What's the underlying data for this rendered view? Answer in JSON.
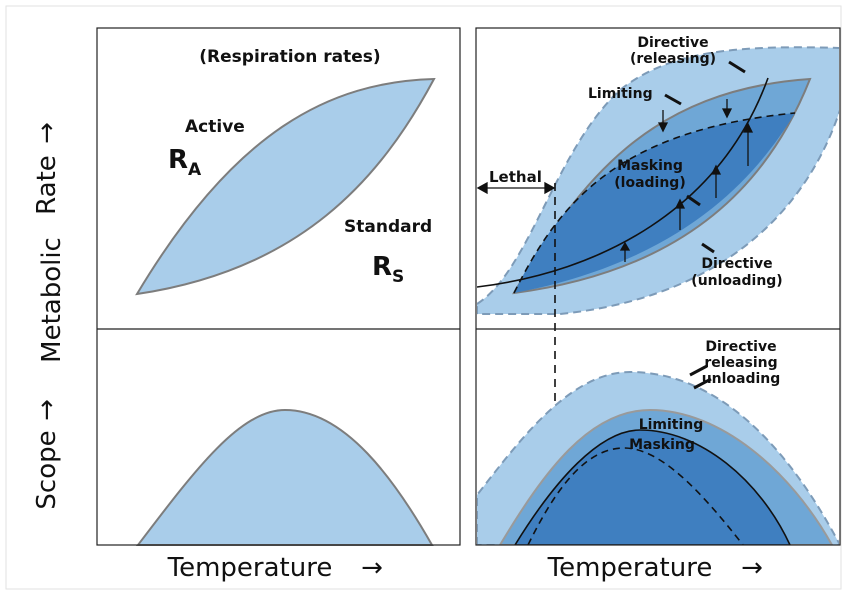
{
  "figure": {
    "ylabel_main": "Metabolic",
    "ylabel_rate": "Rate",
    "ylabel_scope": "Scope",
    "xlabel_left": "Temperature",
    "xlabel_right": "Temperature",
    "arrow_glyph": "→"
  },
  "top_left": {
    "title": "(Respiration rates)",
    "active_word": "Active",
    "ra_main": "R",
    "ra_sub": "A",
    "standard_word": "Standard",
    "rs_main": "R",
    "rs_sub": "S"
  },
  "top_right": {
    "directive_releasing_1": "Directive",
    "directive_releasing_2": "(releasing)",
    "limiting": "Limiting",
    "lethal": "Lethal",
    "masking_1": "Masking",
    "masking_2": "(loading)",
    "directive_unloading_1": "Directive",
    "directive_unloading_2": "(unloading)"
  },
  "bottom_right": {
    "directive_1": "Directive",
    "directive_2": "releasing",
    "directive_3": "unloading",
    "limiting": "Limiting",
    "masking": "Masking"
  },
  "colors": {
    "light_fill": "#a9cdea",
    "mid_fill": "#6fa7d6",
    "dark_fill": "#3f7fc0",
    "outline": "#7d7d7d",
    "line": "#111111"
  }
}
